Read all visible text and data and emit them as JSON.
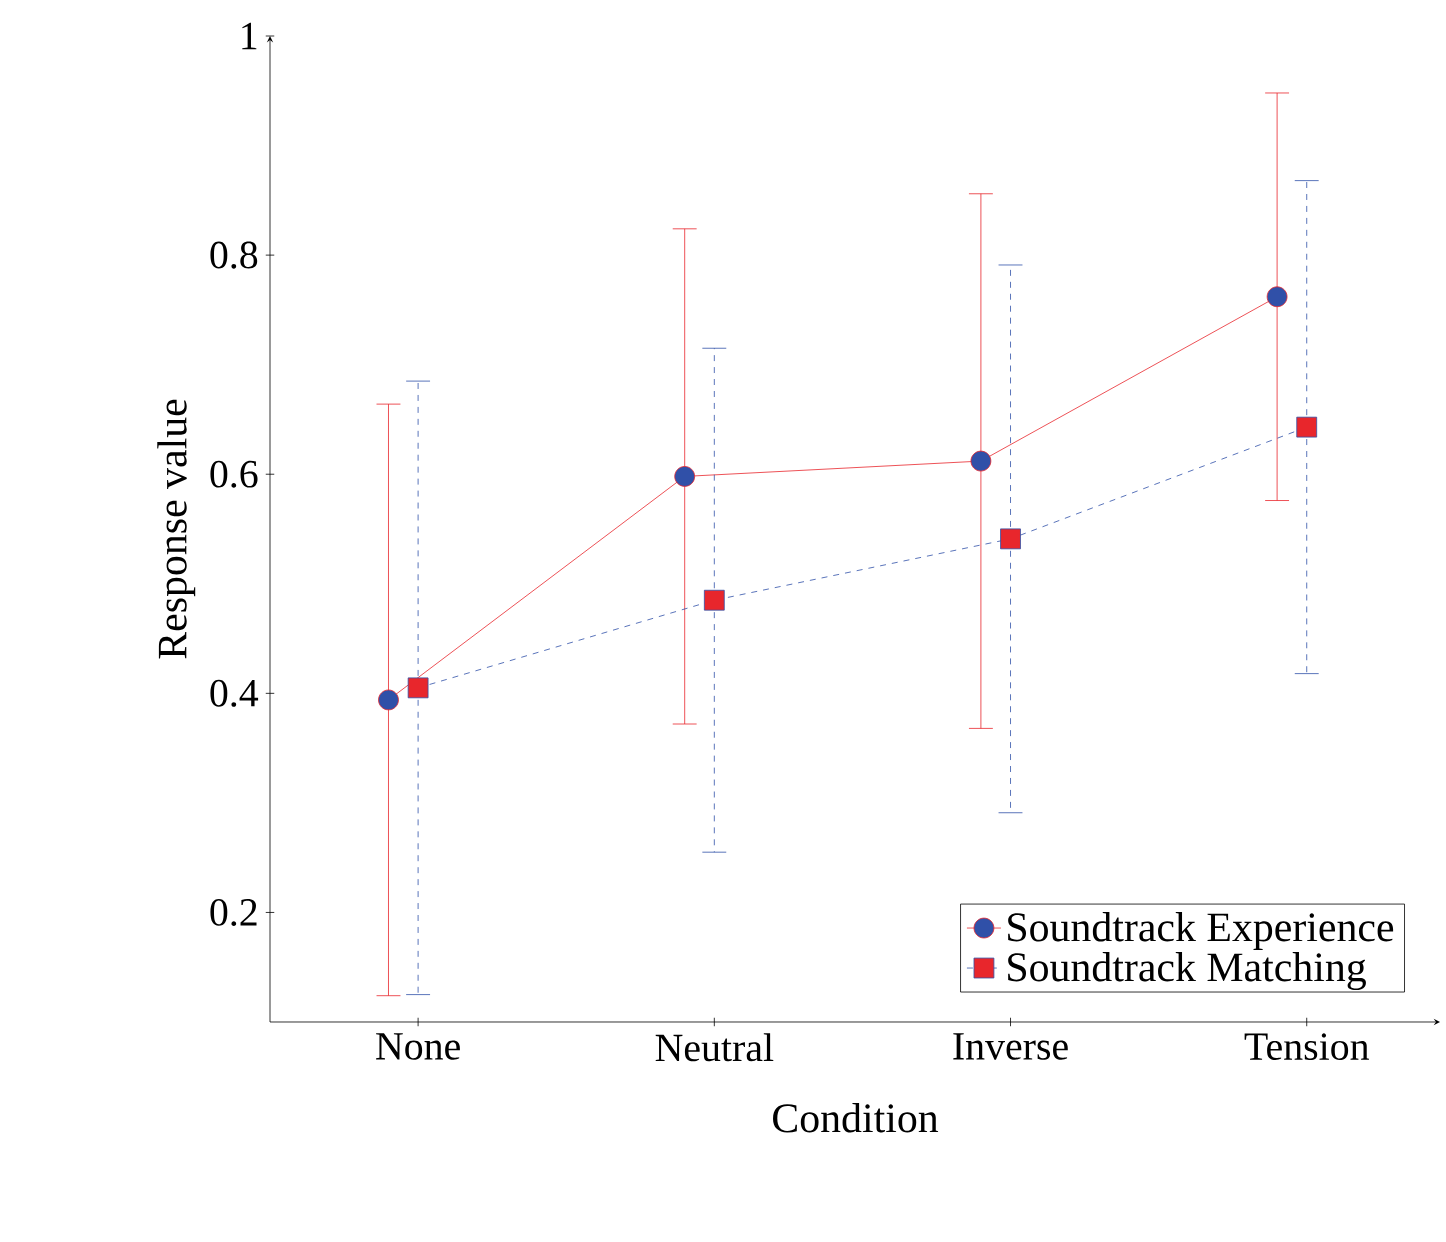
{
  "chart_data": {
    "type": "line",
    "xlabel": "Condition",
    "ylabel": "Response value",
    "categories": [
      "None",
      "Neutral",
      "Inverse",
      "Tension"
    ],
    "series": [
      {
        "name": "Soundtrack Experience",
        "color": "#e8262c",
        "marker": "circle",
        "line_style": "solid",
        "values": [
          0.394,
          0.598,
          0.612,
          0.762
        ],
        "errors": [
          0.27,
          0.226,
          0.244,
          0.186
        ]
      },
      {
        "name": "Soundtrack Matching",
        "color": "#3050a8",
        "marker": "square",
        "line_style": "dashed",
        "values": [
          0.405,
          0.485,
          0.541,
          0.643
        ],
        "errors": [
          0.28,
          0.23,
          0.25,
          0.225
        ]
      }
    ],
    "ylim": [
      0.1,
      1
    ],
    "yticks": [
      0.2,
      0.4,
      0.6,
      0.8,
      1
    ],
    "grid": false,
    "legend": "bottom right"
  }
}
